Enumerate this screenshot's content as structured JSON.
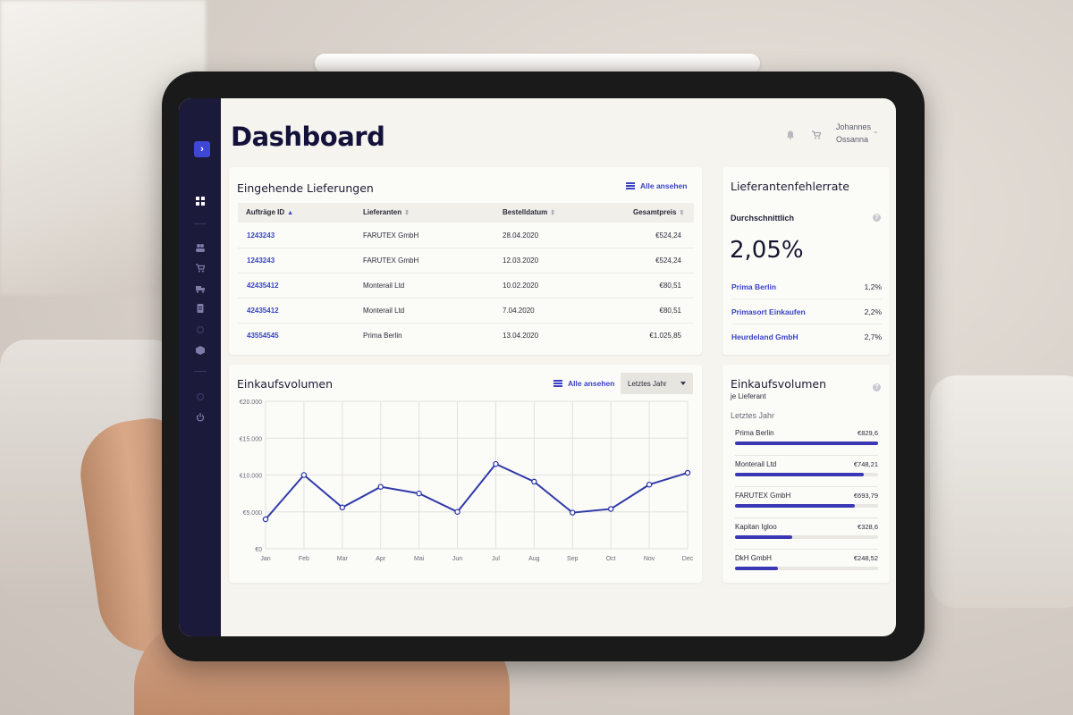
{
  "header": {
    "title": "Dashboard",
    "user_first": "Johannes",
    "user_last": "Ossanna",
    "icons": [
      "bell-icon",
      "cart-icon",
      "chevron-down-icon"
    ]
  },
  "sidebar": {
    "expand_icon": "chevron-right-icon",
    "items": [
      {
        "name": "dashboard-icon",
        "active": true
      },
      {
        "name": "users-icon"
      },
      {
        "name": "cart-icon"
      },
      {
        "name": "truck-icon"
      },
      {
        "name": "document-icon"
      },
      {
        "name": "circle-icon"
      },
      {
        "name": "box-icon"
      },
      {
        "name": "settings-icon"
      },
      {
        "name": "power-icon"
      }
    ]
  },
  "deliveries": {
    "title": "Eingehende Lieferungen",
    "view_all": "Alle ansehen",
    "columns": [
      "Aufträge ID",
      "Lieferanten",
      "Bestelldatum",
      "Gesamtpreis"
    ],
    "rows": [
      {
        "id": "1243243",
        "supplier": "FARUTEX GmbH",
        "date": "28.04.2020",
        "total": "€524,24"
      },
      {
        "id": "1243243",
        "supplier": "FARUTEX GmbH",
        "date": "12.03.2020",
        "total": "€524,24"
      },
      {
        "id": "42435412",
        "supplier": "Monterail Ltd",
        "date": "10.02.2020",
        "total": "€80,51"
      },
      {
        "id": "42435412",
        "supplier": "Monterail Ltd",
        "date": "7.04.2020",
        "total": "€80,51"
      },
      {
        "id": "43554545",
        "supplier": "Prima Berlin",
        "date": "13.04.2020",
        "total": "€1.025,85"
      }
    ]
  },
  "error_rate": {
    "title": "Lieferantenfehlerrate",
    "avg_label": "Durchschnittlich",
    "avg_value": "2,05%",
    "suppliers": [
      {
        "name": "Prima Berlin",
        "value": "1,2%"
      },
      {
        "name": "Primasort Einkaufen",
        "value": "2,2%"
      },
      {
        "name": "Heurdeland GmbH",
        "value": "2,7%"
      }
    ]
  },
  "volume": {
    "title": "Einkaufsvolumen",
    "view_all": "Alle ansehen",
    "period": "Letztes Jahr"
  },
  "chart_data": {
    "type": "line",
    "title": "",
    "xlabel": "",
    "ylabel": "",
    "categories": [
      "Jan",
      "Feb",
      "Mar",
      "Apr",
      "Mai",
      "Jun",
      "Jul",
      "Aug",
      "Sep",
      "Oct",
      "Nov",
      "Dec"
    ],
    "values": [
      4000,
      10000,
      5600,
      8400,
      7500,
      5000,
      11500,
      9100,
      4900,
      5400,
      8700,
      10300
    ],
    "ylim": [
      0,
      20000
    ],
    "yticks": [
      0,
      5000,
      10000,
      15000,
      20000
    ],
    "ytick_labels": [
      "€0",
      "€5.000",
      "€10.000",
      "€15.000",
      "€20.000"
    ],
    "grid": true,
    "color": "#2f3aa8"
  },
  "per_supplier": {
    "title": "Einkaufsvolumen",
    "subtitle": "je Lieferant",
    "period": "Letztes Jahr",
    "color": "#3a37b5",
    "items": [
      {
        "name": "Prima Berlin",
        "value": "€829,6",
        "fraction": 1.0
      },
      {
        "name": "Monterail Ltd",
        "value": "€748,21",
        "fraction": 0.9
      },
      {
        "name": "FARUTEX GmbH",
        "value": "€693,79",
        "fraction": 0.84
      },
      {
        "name": "Kapitan Igloo",
        "value": "€328,6",
        "fraction": 0.4
      },
      {
        "name": "DkH GmbH",
        "value": "€248,52",
        "fraction": 0.3
      }
    ]
  }
}
